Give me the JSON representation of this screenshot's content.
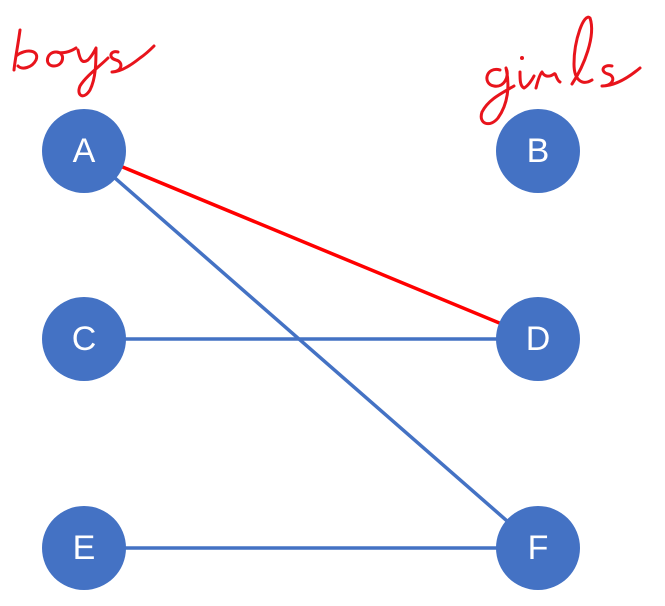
{
  "groups": {
    "left_label": "boys",
    "right_label": "girls",
    "label_color": "#e8141c"
  },
  "colors": {
    "node": "#4472c4",
    "edge_default": "#4472c4",
    "edge_highlight": "#ff0000",
    "node_text": "#ffffff"
  },
  "nodes": [
    {
      "id": "A",
      "label": "A",
      "side": "left"
    },
    {
      "id": "B",
      "label": "B",
      "side": "right"
    },
    {
      "id": "C",
      "label": "C",
      "side": "left"
    },
    {
      "id": "D",
      "label": "D",
      "side": "right"
    },
    {
      "id": "E",
      "label": "E",
      "side": "left"
    },
    {
      "id": "F",
      "label": "F",
      "side": "right"
    }
  ],
  "edges": [
    {
      "from": "A",
      "to": "D",
      "highlight": true
    },
    {
      "from": "A",
      "to": "F",
      "highlight": false
    },
    {
      "from": "C",
      "to": "D",
      "highlight": false
    },
    {
      "from": "E",
      "to": "F",
      "highlight": false
    }
  ]
}
